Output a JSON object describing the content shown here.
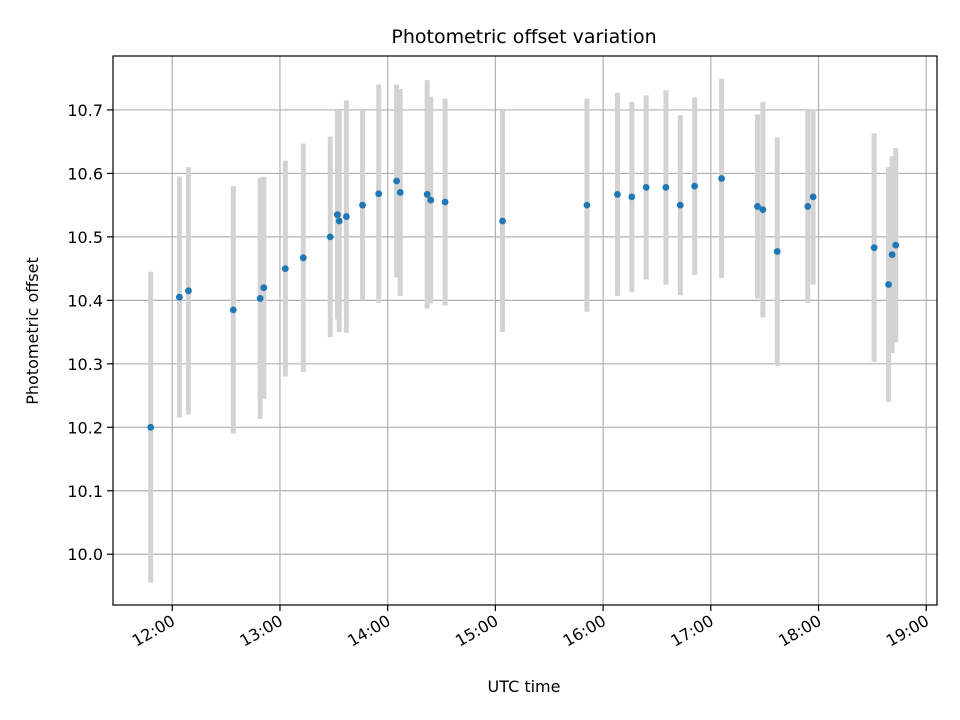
{
  "chart_data": {
    "type": "scatter",
    "title": "Photometric offset variation",
    "xlabel": "UTC time",
    "ylabel": "Photometric offset",
    "xlim": [
      "11:27",
      "19:06"
    ],
    "ylim": [
      9.92,
      10.785
    ],
    "x_ticks": [
      "12:00",
      "13:00",
      "14:00",
      "15:00",
      "16:00",
      "17:00",
      "18:00",
      "19:00"
    ],
    "y_ticks": [
      "10.0",
      "10.1",
      "10.2",
      "10.3",
      "10.4",
      "10.5",
      "10.6",
      "10.7"
    ],
    "grid": true,
    "colors": {
      "point": "#1f77b4",
      "errorbar": "#d3d3d3",
      "grid": "#b0b0b0"
    },
    "points": [
      {
        "x": "11:48",
        "y": 10.2,
        "err": 0.245
      },
      {
        "x": "12:04",
        "y": 10.405,
        "err": 0.19
      },
      {
        "x": "12:09",
        "y": 10.415,
        "err": 0.195
      },
      {
        "x": "12:34",
        "y": 10.385,
        "err": 0.195
      },
      {
        "x": "12:49",
        "y": 10.403,
        "err": 0.19
      },
      {
        "x": "12:51",
        "y": 10.42,
        "err": 0.175
      },
      {
        "x": "13:03",
        "y": 10.45,
        "err": 0.17
      },
      {
        "x": "13:13",
        "y": 10.467,
        "err": 0.18
      },
      {
        "x": "13:28",
        "y": 10.5,
        "err": 0.158
      },
      {
        "x": "13:32",
        "y": 10.535,
        "err": 0.165
      },
      {
        "x": "13:33",
        "y": 10.525,
        "err": 0.175
      },
      {
        "x": "13:37",
        "y": 10.532,
        "err": 0.183
      },
      {
        "x": "13:46",
        "y": 10.55,
        "err": 0.15
      },
      {
        "x": "13:55",
        "y": 10.568,
        "err": 0.172
      },
      {
        "x": "14:05",
        "y": 10.588,
        "err": 0.152
      },
      {
        "x": "14:07",
        "y": 10.57,
        "err": 0.163
      },
      {
        "x": "14:22",
        "y": 10.567,
        "err": 0.18
      },
      {
        "x": "14:24",
        "y": 10.558,
        "err": 0.163
      },
      {
        "x": "14:32",
        "y": 10.555,
        "err": 0.163
      },
      {
        "x": "15:04",
        "y": 10.525,
        "err": 0.175
      },
      {
        "x": "15:51",
        "y": 10.55,
        "err": 0.168
      },
      {
        "x": "16:08",
        "y": 10.567,
        "err": 0.16
      },
      {
        "x": "16:16",
        "y": 10.563,
        "err": 0.15
      },
      {
        "x": "16:24",
        "y": 10.578,
        "err": 0.145
      },
      {
        "x": "16:35",
        "y": 10.578,
        "err": 0.153
      },
      {
        "x": "16:43",
        "y": 10.55,
        "err": 0.142
      },
      {
        "x": "16:51",
        "y": 10.58,
        "err": 0.14
      },
      {
        "x": "17:06",
        "y": 10.592,
        "err": 0.157
      },
      {
        "x": "17:26",
        "y": 10.548,
        "err": 0.145
      },
      {
        "x": "17:29",
        "y": 10.543,
        "err": 0.17
      },
      {
        "x": "17:37",
        "y": 10.477,
        "err": 0.18
      },
      {
        "x": "17:54",
        "y": 10.548,
        "err": 0.152
      },
      {
        "x": "17:57",
        "y": 10.563,
        "err": 0.138
      },
      {
        "x": "18:31",
        "y": 10.483,
        "err": 0.18
      },
      {
        "x": "18:39",
        "y": 10.425,
        "err": 0.185
      },
      {
        "x": "18:41",
        "y": 10.472,
        "err": 0.155
      },
      {
        "x": "18:43",
        "y": 10.487,
        "err": 0.153
      }
    ]
  }
}
